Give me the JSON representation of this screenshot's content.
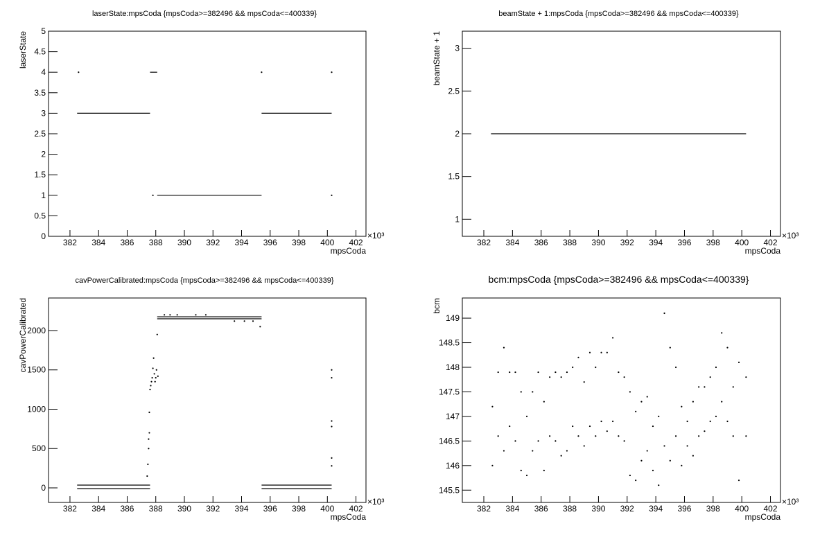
{
  "chart_data": [
    {
      "type": "scatter",
      "title": "laserState:mpsCoda {mpsCoda>=382496 && mpsCoda<=400339}",
      "x_label": "mpsCoda",
      "y_label": "laserState",
      "x_multiplier": "×10³",
      "xlim": [
        380.5,
        402.7
      ],
      "xticks": [
        382,
        384,
        386,
        388,
        390,
        392,
        394,
        396,
        398,
        400,
        402
      ],
      "ylim": [
        0,
        5
      ],
      "yticks": [
        0,
        0.5,
        1,
        1.5,
        2,
        2.5,
        3,
        3.5,
        4,
        4.5,
        5
      ],
      "series": [
        {
          "style": "line",
          "color": "#000000",
          "x": [
            382.5,
            387.6,
            null,
            387.6,
            388.1,
            null,
            388.1,
            395.4,
            null,
            395.4,
            400.3
          ],
          "values": [
            3,
            3,
            null,
            4,
            4,
            null,
            1,
            1,
            null,
            3,
            3
          ]
        },
        {
          "style": "dots",
          "color": "#000000",
          "x": [
            382.6,
            387.8,
            395.4,
            400.3,
            400.3
          ],
          "values": [
            4,
            1,
            4,
            4,
            1
          ]
        }
      ]
    },
    {
      "type": "scatter",
      "title": "beamState + 1:mpsCoda {mpsCoda>=382496 && mpsCoda<=400339}",
      "x_label": "mpsCoda",
      "y_label": "beamState + 1",
      "x_multiplier": "×10³",
      "xlim": [
        380.5,
        402.7
      ],
      "xticks": [
        382,
        384,
        386,
        388,
        390,
        392,
        394,
        396,
        398,
        400,
        402
      ],
      "ylim": [
        0.8,
        3.2
      ],
      "yticks": [
        1,
        1.5,
        2,
        2.5,
        3
      ],
      "series": [
        {
          "style": "line",
          "color": "#000000",
          "x": [
            382.5,
            400.3
          ],
          "values": [
            2,
            2
          ]
        }
      ]
    },
    {
      "type": "scatter",
      "title": "cavPowerCalibrated:mpsCoda {mpsCoda>=382496 && mpsCoda<=400339}",
      "x_label": "mpsCoda",
      "y_label": "cavPowerCalibrated",
      "x_multiplier": "×10³",
      "xlim": [
        380.5,
        402.7
      ],
      "xticks": [
        382,
        384,
        386,
        388,
        390,
        392,
        394,
        396,
        398,
        400,
        402
      ],
      "ylim": [
        -185,
        2414
      ],
      "yticks": [
        0,
        500,
        1000,
        1500,
        2000
      ],
      "series": [
        {
          "style": "line",
          "color": "#000000",
          "x": [
            382.5,
            387.6,
            null,
            382.5,
            387.6,
            null,
            388.1,
            395.4,
            null,
            388.1,
            395.4,
            null,
            395.4,
            400.3,
            null,
            395.4,
            400.3
          ],
          "values": [
            -10,
            -10,
            null,
            35,
            35,
            null,
            2150,
            2150,
            null,
            2175,
            2175,
            null,
            -10,
            -10,
            null,
            35,
            35
          ]
        },
        {
          "style": "dots",
          "color": "#000000",
          "x": [
            387.4,
            387.45,
            387.5,
            387.5,
            387.55,
            387.55,
            387.6,
            387.65,
            387.7,
            387.75,
            387.8,
            387.85,
            387.9,
            387.95,
            388.0,
            388.05,
            388.1,
            388.15,
            388.6,
            389.0,
            389.5,
            390.8,
            391.5,
            393.5,
            394.2,
            394.8,
            395.3,
            400.3,
            400.3,
            400.3,
            400.3,
            400.3,
            400.3
          ],
          "values": [
            150,
            300,
            500,
            620,
            700,
            960,
            1250,
            1300,
            1350,
            1400,
            1520,
            1650,
            1450,
            1350,
            1400,
            1500,
            1950,
            1420,
            2200,
            2200,
            2200,
            2200,
            2200,
            2120,
            2120,
            2120,
            2050,
            1500,
            1400,
            850,
            780,
            380,
            280
          ]
        }
      ]
    },
    {
      "type": "scatter",
      "title": "bcm:mpsCoda {mpsCoda>=382496 && mpsCoda<=400339}",
      "x_label": "mpsCoda",
      "y_label": "bcm",
      "x_multiplier": "×10³",
      "xlim": [
        380.5,
        402.7
      ],
      "xticks": [
        382,
        384,
        386,
        388,
        390,
        392,
        394,
        396,
        398,
        400,
        402
      ],
      "ylim": [
        145.25,
        149.41
      ],
      "yticks": [
        145.5,
        146,
        146.5,
        147,
        147.5,
        148,
        148.5,
        149
      ],
      "series": [
        {
          "style": "dots",
          "color": "#000000",
          "x": [
            382.6,
            382.6,
            383.0,
            383.0,
            383.4,
            383.4,
            383.8,
            383.8,
            384.2,
            384.2,
            384.6,
            384.6,
            385.0,
            385.0,
            385.4,
            385.4,
            385.8,
            385.8,
            386.2,
            386.2,
            386.6,
            386.6,
            387.0,
            387.0,
            387.4,
            387.4,
            387.8,
            387.8,
            388.2,
            388.2,
            388.6,
            388.6,
            389.0,
            389.0,
            389.4,
            389.4,
            389.8,
            389.8,
            390.2,
            390.2,
            390.6,
            390.6,
            391.0,
            391.0,
            391.4,
            391.4,
            391.8,
            391.8,
            392.2,
            392.2,
            392.6,
            392.6,
            393.0,
            393.0,
            393.4,
            393.4,
            393.8,
            393.8,
            394.2,
            394.2,
            394.6,
            394.6,
            395.0,
            395.0,
            395.4,
            395.4,
            395.8,
            395.8,
            396.2,
            396.2,
            396.6,
            396.6,
            397.0,
            397.0,
            397.4,
            397.4,
            397.8,
            397.8,
            398.2,
            398.2,
            398.6,
            398.6,
            399.0,
            399.0,
            399.4,
            399.4,
            399.8,
            399.8,
            400.3,
            400.3
          ],
          "values": [
            146.0,
            147.2,
            146.6,
            147.9,
            146.3,
            148.4,
            146.8,
            147.9,
            146.5,
            147.9,
            145.9,
            147.5,
            145.8,
            147.0,
            146.3,
            147.5,
            146.5,
            147.9,
            145.9,
            147.3,
            146.6,
            147.8,
            146.5,
            147.9,
            146.2,
            147.8,
            146.3,
            147.9,
            146.8,
            148.0,
            146.6,
            148.2,
            146.4,
            147.7,
            146.8,
            148.3,
            146.6,
            148.0,
            146.9,
            148.3,
            146.7,
            148.3,
            146.9,
            148.6,
            146.6,
            147.9,
            146.5,
            147.8,
            145.8,
            147.5,
            145.7,
            147.1,
            146.1,
            147.3,
            146.3,
            147.4,
            145.9,
            146.8,
            145.6,
            147.0,
            146.4,
            149.1,
            146.1,
            148.4,
            146.6,
            148.0,
            146.0,
            147.2,
            146.4,
            146.9,
            146.2,
            147.3,
            146.6,
            147.6,
            146.7,
            147.6,
            146.9,
            147.8,
            147.0,
            148.0,
            147.3,
            148.7,
            146.9,
            148.4,
            146.6,
            147.6,
            145.7,
            148.1,
            146.6,
            147.8
          ]
        }
      ]
    }
  ]
}
